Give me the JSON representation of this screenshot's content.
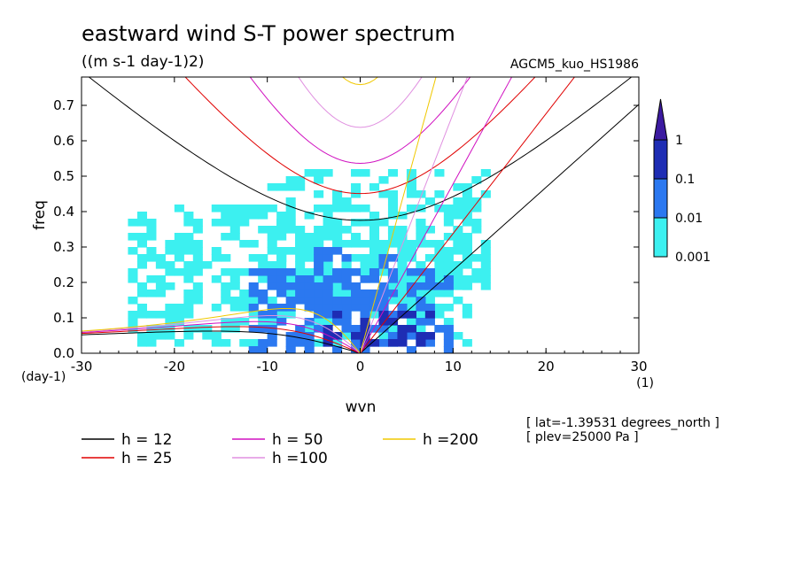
{
  "chart_data": {
    "type": "heatmap",
    "title": "eastward wind S-T power spectrum",
    "units": "((m s-1 day-1)2)",
    "model": "AGCM5_kuo_HS1986",
    "xlabel": "wvn",
    "ylabel": "freq",
    "x_unit": "(1)",
    "y_unit": "(day-1)",
    "xlim": [
      -30,
      30
    ],
    "ylim": [
      0,
      0.78
    ],
    "x_ticks": [
      {
        "v": -30,
        "label": "-30"
      },
      {
        "v": -20,
        "label": "-20"
      },
      {
        "v": -10,
        "label": "-10"
      },
      {
        "v": 0,
        "label": "0"
      },
      {
        "v": 10,
        "label": "10"
      },
      {
        "v": 20,
        "label": "20"
      },
      {
        "v": 30,
        "label": "30"
      }
    ],
    "y_ticks": [
      {
        "v": 0,
        "label": "0.0"
      },
      {
        "v": 0.1,
        "label": "0.1"
      },
      {
        "v": 0.2,
        "label": "0.2"
      },
      {
        "v": 0.3,
        "label": "0.3"
      },
      {
        "v": 0.4,
        "label": "0.4"
      },
      {
        "v": 0.5,
        "label": "0.5"
      },
      {
        "v": 0.6,
        "label": "0.6"
      },
      {
        "v": 0.7,
        "label": "0.7"
      }
    ],
    "color_levels": [
      {
        "label": "0.001",
        "color": "#3cf0f0"
      },
      {
        "label": "0.01",
        "color": "#2b78f0"
      },
      {
        "label": "0.1",
        "color": "#1e2db4"
      },
      {
        "label": "1",
        "color": "#3c1aa0"
      }
    ],
    "equivalent_depths": [
      {
        "label": "h = 12",
        "h": 12,
        "color": "#000000"
      },
      {
        "label": "h = 25",
        "h": 25,
        "color": "#e00000"
      },
      {
        "label": "h = 50",
        "h": 50,
        "color": "#d010c0"
      },
      {
        "label": "h =100",
        "h": 100,
        "color": "#e090e0"
      },
      {
        "label": "h =200",
        "h": 200,
        "color": "#f0c800"
      }
    ],
    "spectrum_regions": [
      {
        "level": 0,
        "x": [
          -25,
          12
        ],
        "y": [
          0.02,
          0.42
        ],
        "density": 0.45
      },
      {
        "level": 0,
        "x": [
          -10,
          14
        ],
        "y": [
          0.18,
          0.52
        ],
        "density": 0.35
      },
      {
        "level": 1,
        "x": [
          -12,
          10
        ],
        "y": [
          0.0,
          0.22
        ],
        "density": 0.45
      },
      {
        "level": 1,
        "x": [
          -5,
          4
        ],
        "y": [
          0.02,
          0.3
        ],
        "density": 0.35
      },
      {
        "level": 2,
        "x": [
          -4,
          8
        ],
        "y": [
          0.02,
          0.12
        ],
        "density": 0.35
      }
    ],
    "annotations": [
      "[ lat=-1.39531 degrees_north ]",
      "[ plev=25000 Pa ]"
    ]
  }
}
